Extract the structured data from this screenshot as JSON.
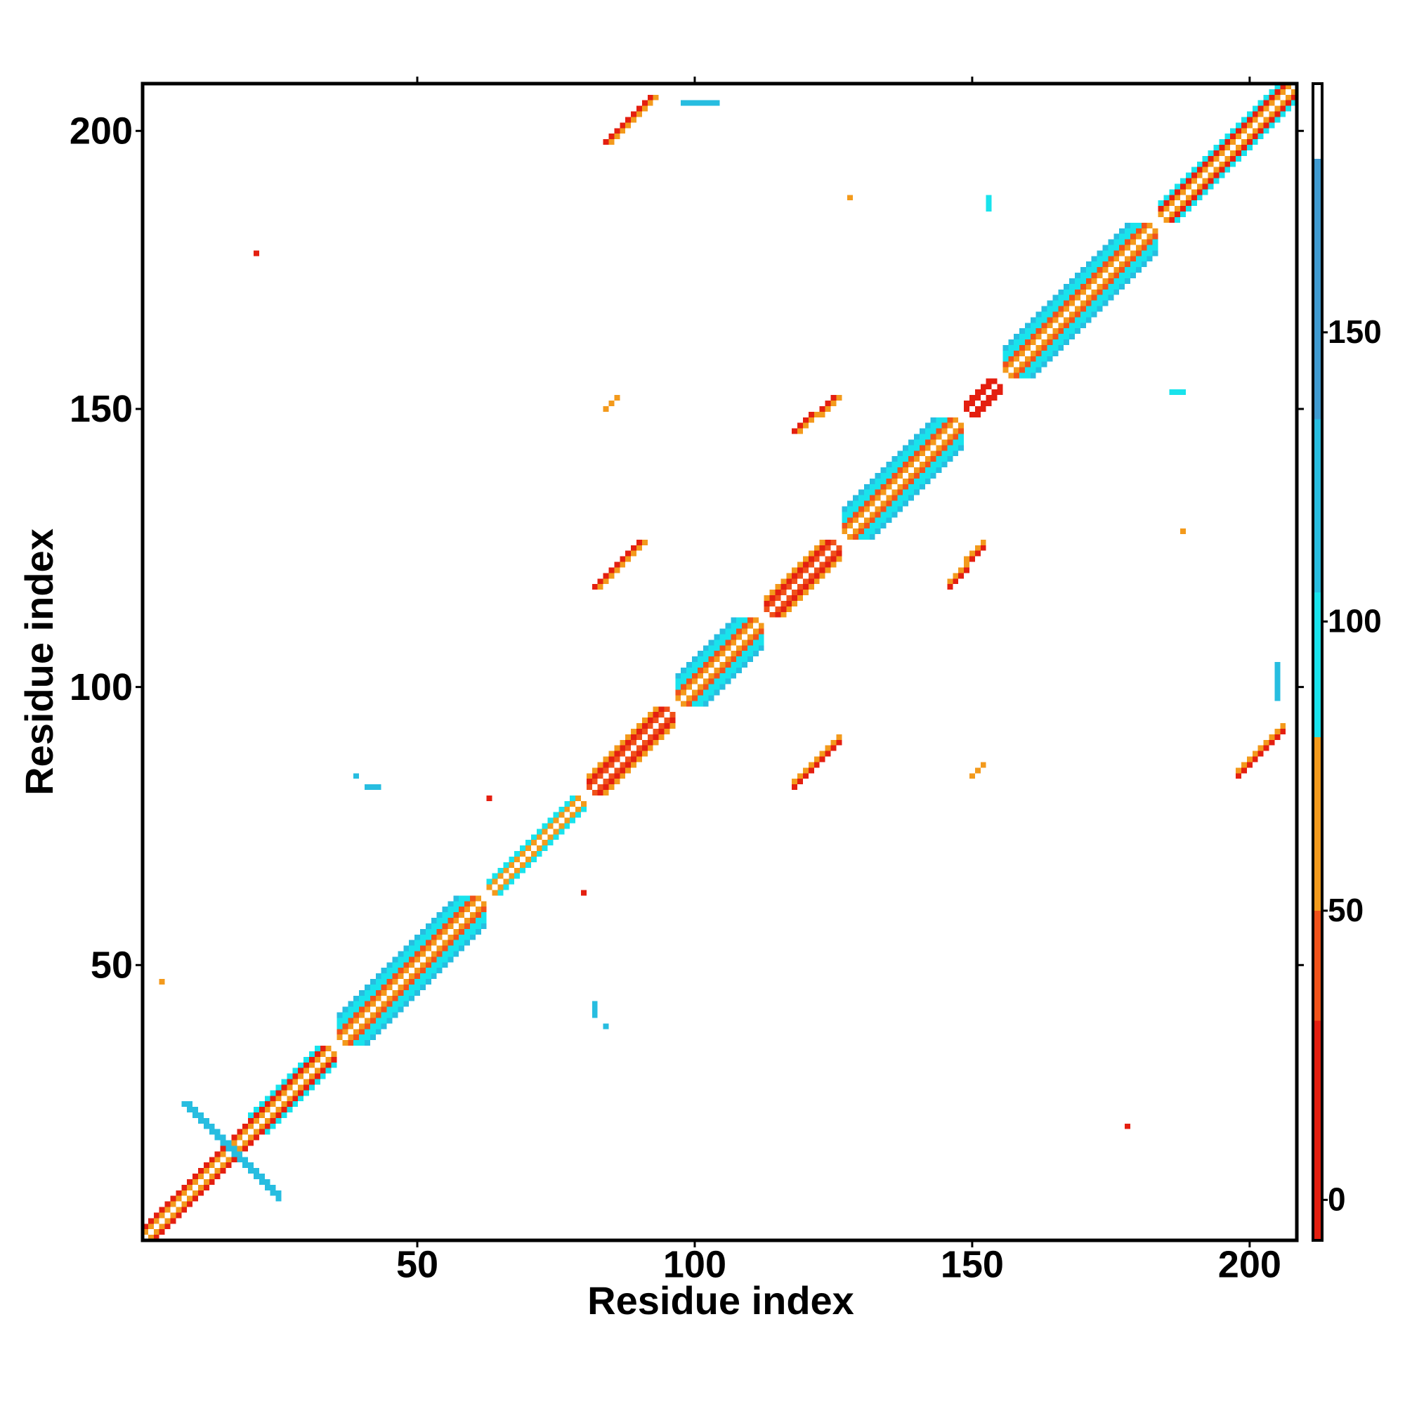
{
  "chart_data": {
    "type": "heatmap",
    "xlabel": "Residue index",
    "ylabel": "Residue index",
    "xlim": [
      0.5,
      208.5
    ],
    "ylim": [
      0.5,
      208.5
    ],
    "xticks": [
      50,
      100,
      150,
      200
    ],
    "yticks": [
      50,
      100,
      150,
      200
    ],
    "colorbar": {
      "ylim": [
        -7,
        193
      ],
      "yticks": [
        0,
        50,
        100,
        150
      ],
      "stops": [
        [
          -7,
          "#e41f10"
        ],
        [
          31,
          "#f0521a"
        ],
        [
          50,
          "#f39a1c"
        ],
        [
          80,
          "#19e3ec"
        ],
        [
          105,
          "#27bde0"
        ],
        [
          135,
          "#3f9ad0"
        ],
        [
          180,
          "#ffffff"
        ]
      ]
    },
    "runs": [
      [
        1,
        2,
        34,
        35,
        65
      ],
      [
        2,
        1,
        35,
        34,
        65
      ],
      [
        1,
        3,
        33,
        35,
        10
      ],
      [
        3,
        1,
        35,
        33,
        10
      ],
      [
        20,
        23,
        32,
        35,
        90
      ],
      [
        23,
        20,
        35,
        32,
        90
      ],
      [
        36,
        37,
        61,
        62,
        65
      ],
      [
        37,
        36,
        62,
        61,
        65
      ],
      [
        36,
        38,
        60,
        62,
        40
      ],
      [
        38,
        36,
        62,
        60,
        40
      ],
      [
        36,
        39,
        59,
        62,
        90
      ],
      [
        39,
        36,
        62,
        59,
        90
      ],
      [
        36,
        40,
        58,
        62,
        90
      ],
      [
        40,
        36,
        62,
        58,
        90
      ],
      [
        36,
        41,
        57,
        62,
        120
      ],
      [
        41,
        36,
        62,
        57,
        120
      ],
      [
        63,
        64,
        79,
        80,
        65
      ],
      [
        64,
        63,
        80,
        79,
        65
      ],
      [
        63,
        65,
        78,
        80,
        90
      ],
      [
        65,
        63,
        80,
        78,
        90
      ],
      [
        81,
        82,
        95,
        96,
        40
      ],
      [
        82,
        81,
        96,
        95,
        40
      ],
      [
        81,
        83,
        94,
        96,
        10
      ],
      [
        83,
        81,
        96,
        94,
        10
      ],
      [
        81,
        84,
        93,
        96,
        65
      ],
      [
        84,
        81,
        96,
        93,
        65
      ],
      [
        97,
        98,
        111,
        112,
        65
      ],
      [
        98,
        97,
        112,
        111,
        65
      ],
      [
        97,
        99,
        110,
        112,
        40
      ],
      [
        99,
        97,
        112,
        110,
        40
      ],
      [
        97,
        100,
        109,
        112,
        90
      ],
      [
        100,
        97,
        112,
        109,
        90
      ],
      [
        97,
        101,
        108,
        112,
        90
      ],
      [
        101,
        97,
        112,
        108,
        90
      ],
      [
        97,
        102,
        107,
        112,
        120
      ],
      [
        102,
        97,
        112,
        107,
        120
      ],
      [
        113,
        114,
        125,
        126,
        40
      ],
      [
        114,
        113,
        126,
        125,
        40
      ],
      [
        113,
        115,
        124,
        126,
        10
      ],
      [
        115,
        113,
        126,
        124,
        10
      ],
      [
        113,
        116,
        123,
        126,
        65
      ],
      [
        116,
        113,
        126,
        123,
        65
      ],
      [
        127,
        128,
        147,
        148,
        65
      ],
      [
        128,
        127,
        148,
        147,
        65
      ],
      [
        127,
        129,
        146,
        148,
        40
      ],
      [
        129,
        127,
        148,
        146,
        40
      ],
      [
        127,
        130,
        145,
        148,
        90
      ],
      [
        130,
        127,
        148,
        145,
        90
      ],
      [
        127,
        131,
        144,
        148,
        90
      ],
      [
        131,
        127,
        148,
        144,
        90
      ],
      [
        127,
        132,
        143,
        148,
        120
      ],
      [
        132,
        127,
        148,
        143,
        120
      ],
      [
        149,
        150,
        154,
        155,
        10
      ],
      [
        150,
        149,
        155,
        154,
        10
      ],
      [
        149,
        151,
        153,
        155,
        10
      ],
      [
        151,
        149,
        155,
        153,
        10
      ],
      [
        156,
        157,
        182,
        183,
        65
      ],
      [
        157,
        156,
        183,
        182,
        65
      ],
      [
        156,
        158,
        181,
        183,
        40
      ],
      [
        158,
        156,
        183,
        181,
        40
      ],
      [
        156,
        159,
        180,
        183,
        90
      ],
      [
        159,
        156,
        183,
        180,
        90
      ],
      [
        156,
        160,
        179,
        183,
        90
      ],
      [
        160,
        156,
        183,
        179,
        90
      ],
      [
        156,
        161,
        178,
        183,
        120
      ],
      [
        161,
        156,
        183,
        178,
        120
      ],
      [
        184,
        185,
        207,
        208,
        65
      ],
      [
        185,
        184,
        208,
        207,
        65
      ],
      [
        184,
        186,
        206,
        208,
        10
      ],
      [
        186,
        184,
        208,
        206,
        10
      ],
      [
        184,
        187,
        205,
        208,
        90
      ],
      [
        187,
        184,
        208,
        205,
        90
      ],
      [
        8,
        25,
        25,
        8,
        120
      ],
      [
        9,
        25,
        25,
        9,
        120
      ],
      [
        84,
        198,
        92,
        206,
        10
      ],
      [
        85,
        198,
        93,
        206,
        65
      ],
      [
        198,
        84,
        206,
        92,
        10
      ],
      [
        198,
        85,
        206,
        93,
        65
      ],
      [
        82,
        118,
        90,
        126,
        10
      ],
      [
        83,
        118,
        91,
        126,
        65
      ],
      [
        118,
        82,
        126,
        90,
        10
      ],
      [
        118,
        83,
        126,
        91,
        65
      ],
      [
        118,
        146,
        125,
        152,
        10
      ],
      [
        119,
        146,
        126,
        152,
        65
      ],
      [
        146,
        118,
        152,
        125,
        10
      ],
      [
        146,
        119,
        152,
        126,
        65
      ],
      [
        153,
        186,
        153,
        188,
        90
      ],
      [
        186,
        153,
        188,
        153,
        90
      ],
      [
        84,
        150,
        86,
        152,
        65
      ],
      [
        150,
        84,
        152,
        86,
        65
      ],
      [
        98,
        205,
        104,
        205,
        120
      ],
      [
        205,
        98,
        205,
        104,
        120
      ],
      [
        128,
        188,
        128,
        188,
        65
      ],
      [
        188,
        128,
        188,
        128,
        65
      ],
      [
        21,
        178,
        21,
        178,
        10
      ],
      [
        178,
        21,
        178,
        21,
        10
      ],
      [
        4,
        47,
        4,
        47,
        65
      ],
      [
        63,
        80,
        63,
        80,
        10
      ],
      [
        80,
        63,
        80,
        63,
        10
      ],
      [
        39,
        84,
        39,
        84,
        120
      ],
      [
        41,
        82,
        43,
        82,
        120
      ],
      [
        84,
        39,
        84,
        39,
        120
      ],
      [
        82,
        41,
        82,
        43,
        120
      ]
    ]
  }
}
